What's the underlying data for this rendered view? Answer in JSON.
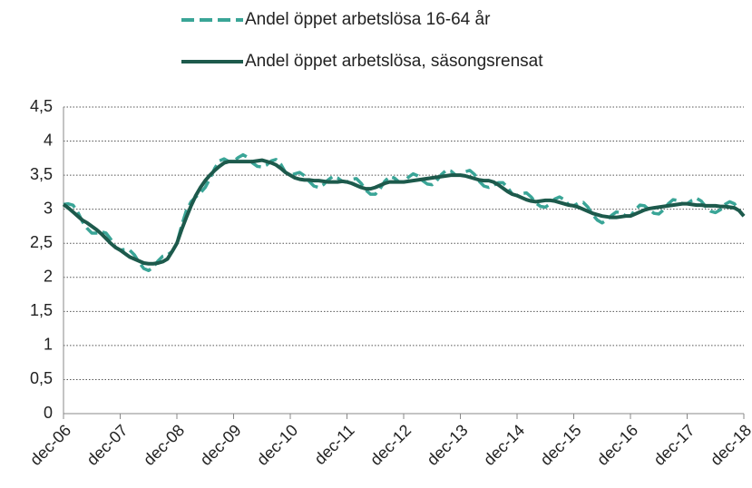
{
  "chart_data": {
    "type": "line",
    "categories": [
      "dec-06",
      null,
      null,
      null,
      null,
      null,
      null,
      null,
      null,
      null,
      null,
      null,
      "dec-07",
      null,
      null,
      null,
      null,
      null,
      null,
      null,
      null,
      null,
      null,
      null,
      "dec-08",
      null,
      null,
      null,
      null,
      null,
      null,
      null,
      null,
      null,
      null,
      null,
      "dec-09",
      null,
      null,
      null,
      null,
      null,
      null,
      null,
      null,
      null,
      null,
      null,
      "dec-10",
      null,
      null,
      null,
      null,
      null,
      null,
      null,
      null,
      null,
      null,
      null,
      "dec-11",
      null,
      null,
      null,
      null,
      null,
      null,
      null,
      null,
      null,
      null,
      null,
      "dec-12",
      null,
      null,
      null,
      null,
      null,
      null,
      null,
      null,
      null,
      null,
      null,
      "dec-13",
      null,
      null,
      null,
      null,
      null,
      null,
      null,
      null,
      null,
      null,
      null,
      "dec-14",
      null,
      null,
      null,
      null,
      null,
      null,
      null,
      null,
      null,
      null,
      null,
      "dec-15",
      null,
      null,
      null,
      null,
      null,
      null,
      null,
      null,
      null,
      null,
      null,
      "dec-16",
      null,
      null,
      null,
      null,
      null,
      null,
      null,
      null,
      null,
      null,
      null,
      "dec-17",
      null,
      null,
      null,
      null,
      null,
      null,
      null,
      null,
      null,
      null,
      null,
      "dec-18"
    ],
    "series": [
      {
        "name": "Andel öppet arbetslösa 16-64 år",
        "color": "#3aa597",
        "style": "dashed",
        "values": [
          3.07,
          3.08,
          3.06,
          2.96,
          2.82,
          2.72,
          2.65,
          2.65,
          2.67,
          2.65,
          2.56,
          2.44,
          2.4,
          2.41,
          2.4,
          2.33,
          2.22,
          2.13,
          2.1,
          2.15,
          2.24,
          2.31,
          2.33,
          2.38,
          2.5,
          2.76,
          2.98,
          3.11,
          3.18,
          3.24,
          3.32,
          3.45,
          3.6,
          3.71,
          3.74,
          3.7,
          3.7,
          3.76,
          3.8,
          3.76,
          3.68,
          3.63,
          3.62,
          3.65,
          3.71,
          3.73,
          3.66,
          3.54,
          3.5,
          3.52,
          3.54,
          3.49,
          3.41,
          3.34,
          3.32,
          3.36,
          3.43,
          3.48,
          3.46,
          3.41,
          3.4,
          3.44,
          3.45,
          3.38,
          3.28,
          3.22,
          3.22,
          3.3,
          3.41,
          3.48,
          3.46,
          3.4,
          3.4,
          3.47,
          3.52,
          3.49,
          3.42,
          3.37,
          3.36,
          3.42,
          3.51,
          3.57,
          3.56,
          3.5,
          3.5,
          3.55,
          3.57,
          3.51,
          3.41,
          3.34,
          3.32,
          3.35,
          3.39,
          3.39,
          3.32,
          3.22,
          3.2,
          3.23,
          3.24,
          3.18,
          3.09,
          3.04,
          3.03,
          3.08,
          3.15,
          3.18,
          3.14,
          3.06,
          3.05,
          3.09,
          3.1,
          3.03,
          2.92,
          2.84,
          2.8,
          2.84,
          2.91,
          2.96,
          2.95,
          2.9,
          2.9,
          2.99,
          3.06,
          3.05,
          2.99,
          2.94,
          2.93,
          2.99,
          3.08,
          3.14,
          3.13,
          3.08,
          3.08,
          3.13,
          3.16,
          3.12,
          3.03,
          2.97,
          2.95,
          2.99,
          3.07,
          3.11,
          3.08,
          2.98,
          2.9
        ]
      },
      {
        "name": "Andel öppet arbetslösa, säsongsrensat",
        "color": "#1d5a4c",
        "style": "solid",
        "values": [
          3.07,
          3.02,
          2.96,
          2.9,
          2.84,
          2.8,
          2.75,
          2.7,
          2.64,
          2.57,
          2.5,
          2.44,
          2.4,
          2.35,
          2.3,
          2.27,
          2.24,
          2.21,
          2.2,
          2.2,
          2.21,
          2.23,
          2.27,
          2.38,
          2.5,
          2.7,
          2.88,
          3.05,
          3.2,
          3.32,
          3.42,
          3.5,
          3.57,
          3.63,
          3.68,
          3.7,
          3.7,
          3.7,
          3.7,
          3.7,
          3.7,
          3.71,
          3.72,
          3.7,
          3.68,
          3.65,
          3.6,
          3.54,
          3.5,
          3.46,
          3.44,
          3.43,
          3.43,
          3.42,
          3.42,
          3.41,
          3.4,
          3.4,
          3.4,
          3.41,
          3.4,
          3.38,
          3.35,
          3.32,
          3.3,
          3.3,
          3.32,
          3.35,
          3.38,
          3.4,
          3.4,
          3.4,
          3.4,
          3.41,
          3.42,
          3.43,
          3.44,
          3.45,
          3.46,
          3.47,
          3.48,
          3.49,
          3.5,
          3.5,
          3.5,
          3.49,
          3.47,
          3.45,
          3.43,
          3.42,
          3.42,
          3.4,
          3.36,
          3.31,
          3.26,
          3.22,
          3.2,
          3.17,
          3.14,
          3.12,
          3.11,
          3.12,
          3.13,
          3.13,
          3.12,
          3.1,
          3.08,
          3.06,
          3.05,
          3.03,
          3.0,
          2.97,
          2.94,
          2.92,
          2.9,
          2.89,
          2.88,
          2.88,
          2.89,
          2.9,
          2.9,
          2.93,
          2.96,
          2.99,
          3.01,
          3.02,
          3.03,
          3.04,
          3.05,
          3.06,
          3.07,
          3.08,
          3.08,
          3.07,
          3.06,
          3.06,
          3.05,
          3.05,
          3.05,
          3.04,
          3.04,
          3.03,
          3.02,
          2.98,
          2.9
        ]
      }
    ],
    "ylim": [
      0,
      4.5
    ],
    "yticks": [
      0,
      {
        "value": 0.5,
        "label": "0,5"
      },
      1,
      {
        "value": 1.5,
        "label": "1,5"
      },
      2,
      {
        "value": 2.5,
        "label": "2,5"
      },
      3,
      {
        "value": 3.5,
        "label": "3,5"
      },
      4,
      {
        "value": 4.5,
        "label": "4,5"
      }
    ],
    "grid": true,
    "legend": "top"
  }
}
